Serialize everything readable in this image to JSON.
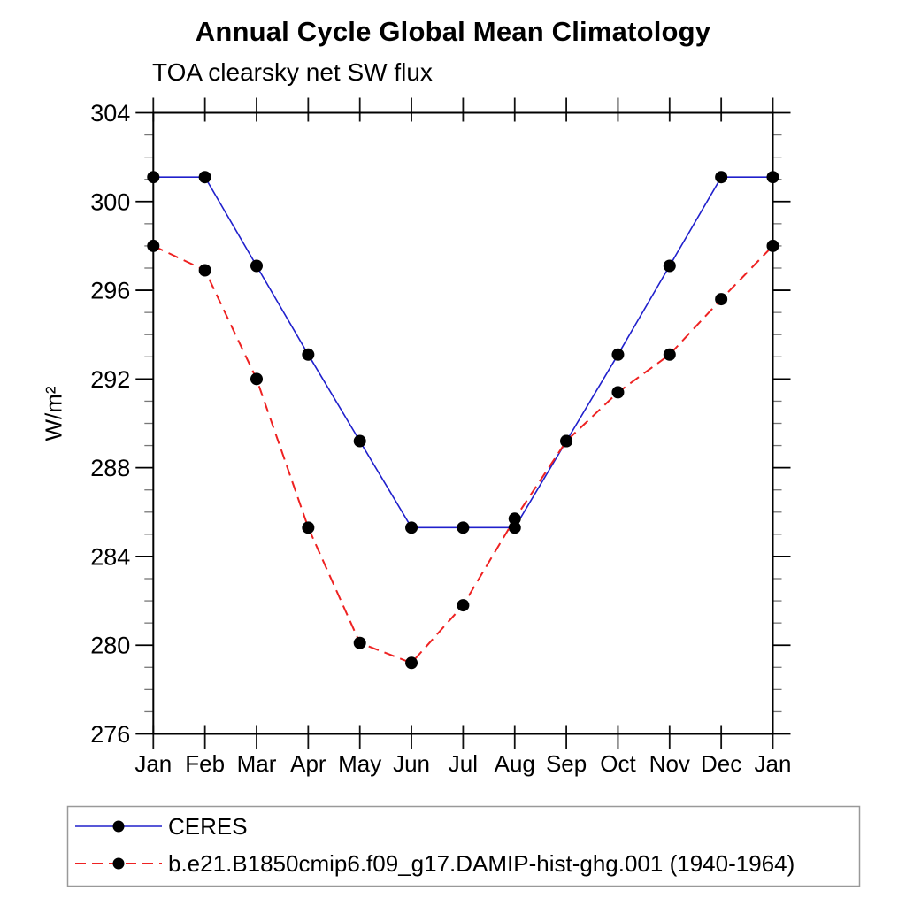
{
  "title": "Annual Cycle Global Mean Climatology",
  "subtitle": "TOA clearsky net SW flux",
  "ylabel": "W/m²",
  "chart_data": {
    "type": "line",
    "title": "Annual Cycle Global Mean Climatology",
    "subtitle": "TOA clearsky net SW flux",
    "xlabel": "",
    "ylabel": "W/m²",
    "categories": [
      "Jan",
      "Feb",
      "Mar",
      "Apr",
      "May",
      "Jun",
      "Jul",
      "Aug",
      "Sep",
      "Oct",
      "Nov",
      "Dec",
      "Jan"
    ],
    "series": [
      {
        "name": "CERES",
        "color": "#2020cc",
        "line_style": "solid",
        "marker": "circle",
        "marker_color": "#000000",
        "values": [
          301.1,
          301.1,
          297.1,
          293.1,
          289.2,
          285.3,
          285.3,
          285.3,
          289.2,
          293.1,
          297.1,
          301.1,
          301.1
        ]
      },
      {
        "name": "b.e21.B1850cmip6.f09_g17.DAMIP-hist-ghg.001 (1940-1964)",
        "color": "#ee2222",
        "line_style": "dashed",
        "marker": "circle",
        "marker_color": "#000000",
        "values": [
          298.0,
          296.9,
          292.0,
          285.3,
          280.1,
          279.2,
          281.8,
          285.7,
          289.2,
          291.4,
          293.1,
          295.6,
          298.0
        ]
      }
    ],
    "ylim": [
      276,
      304
    ],
    "y_major_step": 4,
    "y_minor_step": 1,
    "grid": false,
    "legend_position": "bottom"
  }
}
